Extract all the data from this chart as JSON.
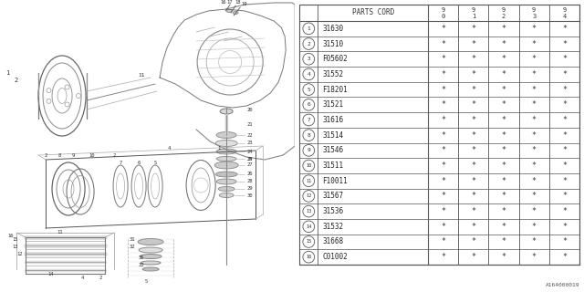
{
  "diagram_note": "A164000019",
  "table": {
    "header_col": "PARTS CORD",
    "year_cols": [
      "9\n0",
      "9\n1",
      "9\n2",
      "9\n3",
      "9\n4"
    ],
    "rows": [
      {
        "num": 1,
        "part": "31630",
        "vals": [
          "*",
          "*",
          "*",
          "*",
          "*"
        ]
      },
      {
        "num": 2,
        "part": "31510",
        "vals": [
          "*",
          "*",
          "*",
          "*",
          "*"
        ]
      },
      {
        "num": 3,
        "part": "F05602",
        "vals": [
          "*",
          "*",
          "*",
          "*",
          "*"
        ]
      },
      {
        "num": 4,
        "part": "31552",
        "vals": [
          "*",
          "*",
          "*",
          "*",
          "*"
        ]
      },
      {
        "num": 5,
        "part": "F18201",
        "vals": [
          "*",
          "*",
          "*",
          "*",
          "*"
        ]
      },
      {
        "num": 6,
        "part": "31521",
        "vals": [
          "*",
          "*",
          "*",
          "*",
          "*"
        ]
      },
      {
        "num": 7,
        "part": "31616",
        "vals": [
          "*",
          "*",
          "*",
          "*",
          "*"
        ]
      },
      {
        "num": 8,
        "part": "31514",
        "vals": [
          "*",
          "*",
          "*",
          "*",
          "*"
        ]
      },
      {
        "num": 9,
        "part": "31546",
        "vals": [
          "*",
          "*",
          "*",
          "*",
          "*"
        ]
      },
      {
        "num": 10,
        "part": "31511",
        "vals": [
          "*",
          "*",
          "*",
          "*",
          "*"
        ]
      },
      {
        "num": 11,
        "part": "F10011",
        "vals": [
          "*",
          "*",
          "*",
          "*",
          "*"
        ]
      },
      {
        "num": 12,
        "part": "31567",
        "vals": [
          "*",
          "*",
          "*",
          "*",
          "*"
        ]
      },
      {
        "num": 13,
        "part": "31536",
        "vals": [
          "*",
          "*",
          "*",
          "*",
          "*"
        ]
      },
      {
        "num": 14,
        "part": "31532",
        "vals": [
          "*",
          "*",
          "*",
          "*",
          "*"
        ]
      },
      {
        "num": 15,
        "part": "31668",
        "vals": [
          "*",
          "*",
          "*",
          "*",
          "*"
        ]
      },
      {
        "num": 16,
        "part": "C01002",
        "vals": [
          "*",
          "*",
          "*",
          "*",
          "*"
        ]
      }
    ]
  },
  "bg_color": "#ffffff",
  "line_color": "#555555",
  "text_color": "#333333"
}
